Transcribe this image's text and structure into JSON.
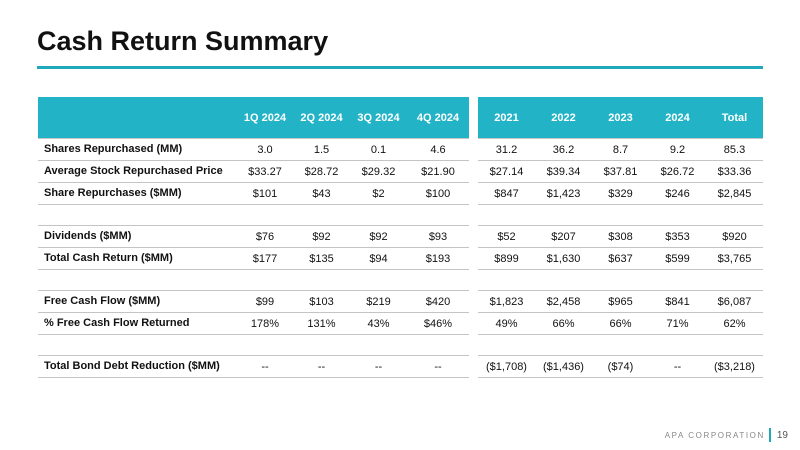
{
  "header": {
    "title": "Cash Return Summary"
  },
  "table": {
    "columns": [
      "1Q 2024",
      "2Q 2024",
      "3Q 2024",
      "4Q 2024",
      "2021",
      "2022",
      "2023",
      "2024",
      "Total"
    ],
    "groups": [
      [
        {
          "label": "Shares Repurchased (MM)",
          "cells": [
            "3.0",
            "1.5",
            "0.1",
            "4.6",
            "31.2",
            "36.2",
            "8.7",
            "9.2",
            "85.3"
          ]
        },
        {
          "label": "Average Stock Repurchased Price",
          "cells": [
            "$33.27",
            "$28.72",
            "$29.32",
            "$21.90",
            "$27.14",
            "$39.34",
            "$37.81",
            "$26.72",
            "$33.36"
          ]
        },
        {
          "label": "Share Repurchases ($MM)",
          "cells": [
            "$101",
            "$43",
            "$2",
            "$100",
            "$847",
            "$1,423",
            "$329",
            "$246",
            "$2,845"
          ]
        }
      ],
      [
        {
          "label": "Dividends ($MM)",
          "cells": [
            "$76",
            "$92",
            "$92",
            "$93",
            "$52",
            "$207",
            "$308",
            "$353",
            "$920"
          ]
        },
        {
          "label": "Total Cash Return ($MM)",
          "cells": [
            "$177",
            "$135",
            "$94",
            "$193",
            "$899",
            "$1,630",
            "$637",
            "$599",
            "$3,765"
          ]
        }
      ],
      [
        {
          "label": "Free Cash Flow ($MM)",
          "cells": [
            "$99",
            "$103",
            "$219",
            "$420",
            "$1,823",
            "$2,458",
            "$965",
            "$841",
            "$6,087"
          ]
        },
        {
          "label": "% Free Cash Flow Returned",
          "cells": [
            "178%",
            "131%",
            "43%",
            "$46%",
            "49%",
            "66%",
            "66%",
            "71%",
            "62%"
          ]
        }
      ],
      [
        {
          "label": "Total Bond Debt Reduction ($MM)",
          "cells": [
            "--",
            "--",
            "--",
            "--",
            "($1,708)",
            "($1,436)",
            "($74)",
            "--",
            "($3,218)"
          ]
        }
      ]
    ]
  },
  "footer": {
    "company": "APA CORPORATION",
    "page": "19"
  }
}
